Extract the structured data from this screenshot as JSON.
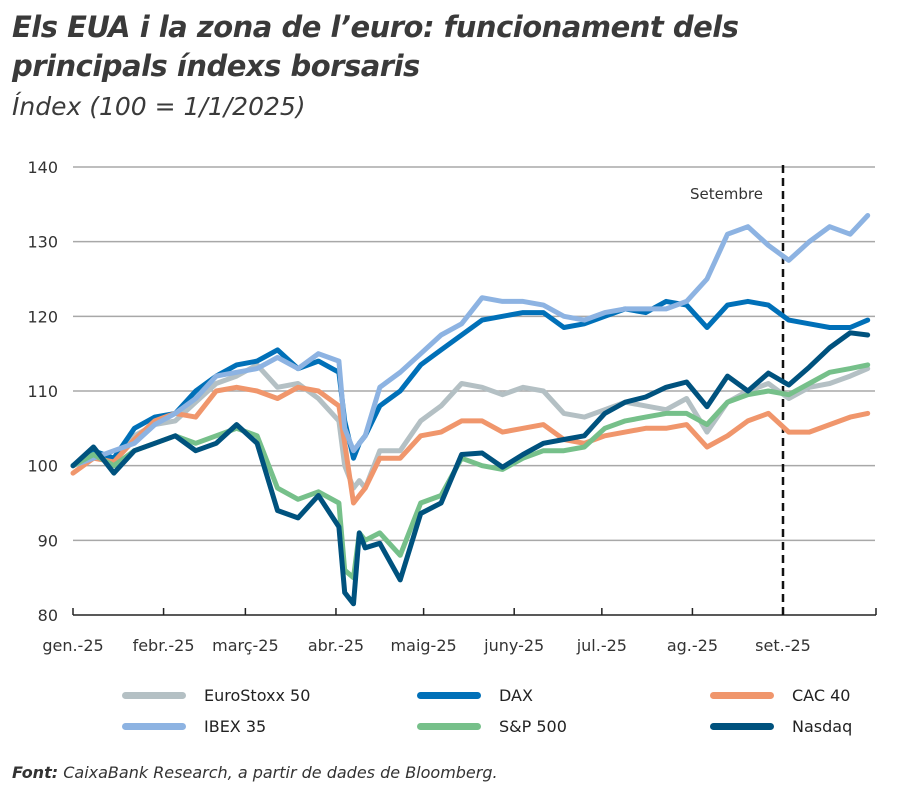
{
  "chart_data": {
    "type": "line",
    "title": "Els EUA i la zona de l’euro: funcionament dels principals índexs borsaris",
    "subtitle": "Índex (100 = 1/1/2025)",
    "xlabel": "",
    "ylabel": "",
    "ylim": [
      80,
      140
    ],
    "yticks": [
      80,
      90,
      100,
      110,
      120,
      130,
      140
    ],
    "xticks": [
      {
        "date": "2025-01-01",
        "label": "gen.-25"
      },
      {
        "date": "2025-02-01",
        "label": "febr.-25"
      },
      {
        "date": "2025-03-01",
        "label": "març-25"
      },
      {
        "date": "2025-04-01",
        "label": "abr.-25"
      },
      {
        "date": "2025-05-01",
        "label": "maig-25"
      },
      {
        "date": "2025-06-01",
        "label": "juny-25"
      },
      {
        "date": "2025-07-01",
        "label": "jul.-25"
      },
      {
        "date": "2025-08-01",
        "label": "ag.-25"
      },
      {
        "date": "2025-09-01",
        "label": "set.-25"
      }
    ],
    "grid": "horizontal",
    "legend_position": "bottom",
    "annotation": {
      "date": "2025-09-01",
      "label": "Setembre",
      "style": "dashed vertical line"
    },
    "x": [
      "2025-01-01",
      "2025-01-08",
      "2025-01-15",
      "2025-01-22",
      "2025-01-29",
      "2025-02-05",
      "2025-02-12",
      "2025-02-19",
      "2025-02-26",
      "2025-03-05",
      "2025-03-12",
      "2025-03-19",
      "2025-03-26",
      "2025-04-02",
      "2025-04-04",
      "2025-04-07",
      "2025-04-09",
      "2025-04-11",
      "2025-04-16",
      "2025-04-23",
      "2025-04-30",
      "2025-05-07",
      "2025-05-14",
      "2025-05-21",
      "2025-05-28",
      "2025-06-04",
      "2025-06-11",
      "2025-06-18",
      "2025-06-25",
      "2025-07-02",
      "2025-07-09",
      "2025-07-16",
      "2025-07-23",
      "2025-07-30",
      "2025-08-06",
      "2025-08-13",
      "2025-08-20",
      "2025-08-27",
      "2025-09-03",
      "2025-09-10",
      "2025-09-17",
      "2025-09-24",
      "2025-09-30"
    ],
    "series": [
      {
        "name": "EuroStoxx 50",
        "color": "#b4c0c4",
        "values": [
          100,
          101.5,
          101,
          104,
          105.5,
          106,
          108.5,
          111,
          112,
          113.5,
          110.5,
          111,
          109,
          106,
          100,
          97,
          98,
          97,
          102,
          102,
          106,
          108,
          111,
          110.5,
          109.5,
          110.5,
          110,
          107,
          106.5,
          107.5,
          108.5,
          108,
          107.5,
          109,
          104.5,
          108.5,
          110,
          111,
          109,
          110.5,
          111,
          112,
          113
        ]
      },
      {
        "name": "DAX",
        "color": "#0070b8",
        "values": [
          100,
          102,
          101,
          105,
          106.5,
          107,
          110,
          112,
          113.5,
          114,
          115.5,
          113,
          114,
          112.5,
          106,
          101,
          103,
          104,
          108,
          110,
          113.5,
          115.5,
          117.5,
          119.5,
          120,
          120.5,
          120.5,
          118.5,
          119,
          120,
          121,
          120.5,
          122,
          121.5,
          118.5,
          121.5,
          122,
          121.5,
          119.5,
          119,
          118.5,
          118.5,
          119.5
        ]
      },
      {
        "name": "CAC 40",
        "color": "#f0966c",
        "values": [
          99,
          101,
          100.5,
          103.5,
          106,
          107,
          106.5,
          110,
          110.5,
          110,
          109,
          110.5,
          110,
          108,
          103,
          95,
          96,
          97,
          101,
          101,
          104,
          104.5,
          106,
          106,
          104.5,
          105,
          105.5,
          103.5,
          103,
          104,
          104.5,
          105,
          105,
          105.5,
          102.5,
          104,
          106,
          107,
          104.5,
          104.5,
          105.5,
          106.5,
          107
        ]
      },
      {
        "name": "IBEX 35",
        "color": "#8db3e2",
        "values": [
          100,
          101,
          102,
          103,
          105.5,
          107,
          109,
          112,
          112.5,
          113,
          114.5,
          113,
          115,
          114,
          105,
          102,
          103,
          104,
          110.5,
          112.5,
          115,
          117.5,
          119,
          122.5,
          122,
          122,
          121.5,
          120,
          119.5,
          120.5,
          121,
          121,
          121,
          122,
          125,
          131,
          132,
          129.5,
          127.5,
          130,
          132,
          131,
          133.5
        ]
      },
      {
        "name": "S&P 500",
        "color": "#76c08a",
        "values": [
          100,
          101.5,
          100,
          102,
          103,
          104,
          103,
          104,
          105,
          104,
          97,
          95.5,
          96.5,
          95,
          86,
          85,
          91,
          90,
          91,
          88,
          95,
          96,
          101,
          100,
          99.5,
          101,
          102,
          102,
          102.5,
          105,
          106,
          106.5,
          107,
          107,
          105.5,
          108.5,
          109.5,
          110,
          109.5,
          111,
          112.5,
          113,
          113.5
        ]
      },
      {
        "name": "Nasdaq",
        "color": "#00527e",
        "values": [
          100,
          102.5,
          99,
          102,
          103,
          104,
          102,
          103,
          105.5,
          103,
          94,
          93,
          96,
          91.8,
          83,
          81.5,
          91,
          89,
          89.6,
          84.7,
          93.6,
          95,
          101.5,
          101.7,
          99.8,
          101.5,
          103,
          103.5,
          104,
          107,
          108.5,
          109.2,
          110.5,
          111.2,
          107.9,
          112,
          110,
          112.4,
          110.8,
          113.2,
          115.8,
          117.8,
          117.5
        ]
      }
    ]
  },
  "source": {
    "label": "Font:",
    "text": "CaixaBank Research, a partir de dades de Bloomberg."
  }
}
